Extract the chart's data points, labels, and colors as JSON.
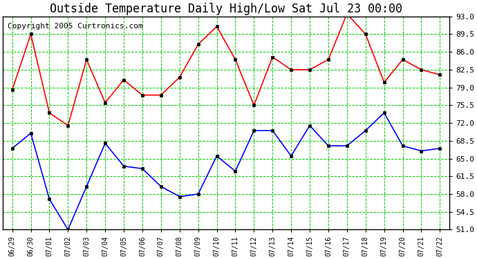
{
  "title": "Outside Temperature Daily High/Low Sat Jul 23 00:00",
  "copyright": "Copyright 2005 Curtronics.com",
  "dates": [
    "06/29",
    "06/30",
    "07/01",
    "07/02",
    "07/03",
    "07/04",
    "07/05",
    "07/06",
    "07/07",
    "07/08",
    "07/09",
    "07/10",
    "07/11",
    "07/12",
    "07/13",
    "07/14",
    "07/15",
    "07/16",
    "07/17",
    "07/18",
    "07/19",
    "07/20",
    "07/21",
    "07/22"
  ],
  "high_temps": [
    78.5,
    89.5,
    74.0,
    71.5,
    84.5,
    76.0,
    80.5,
    77.5,
    77.5,
    81.0,
    87.5,
    91.0,
    84.5,
    75.5,
    85.0,
    82.5,
    82.5,
    84.5,
    93.5,
    89.5,
    80.0,
    84.5,
    82.5,
    81.5
  ],
  "low_temps": [
    67.0,
    70.0,
    57.0,
    51.0,
    59.5,
    68.0,
    63.5,
    63.0,
    59.5,
    57.5,
    58.0,
    65.5,
    62.5,
    70.5,
    70.5,
    65.5,
    71.5,
    67.5,
    67.5,
    70.5,
    74.0,
    67.5,
    66.5,
    67.0
  ],
  "high_color": "#FF0000",
  "low_color": "#0000FF",
  "background_color": "#FFFFFF",
  "grid_color": "#00CC00",
  "marker": "s",
  "marker_size": 3,
  "yticks_right": [
    93.0,
    89.5,
    86.0,
    82.5,
    79.0,
    75.5,
    72.0,
    68.5,
    65.0,
    61.5,
    58.0,
    54.5,
    51.0
  ],
  "title_fontsize": 12,
  "copyright_fontsize": 8
}
